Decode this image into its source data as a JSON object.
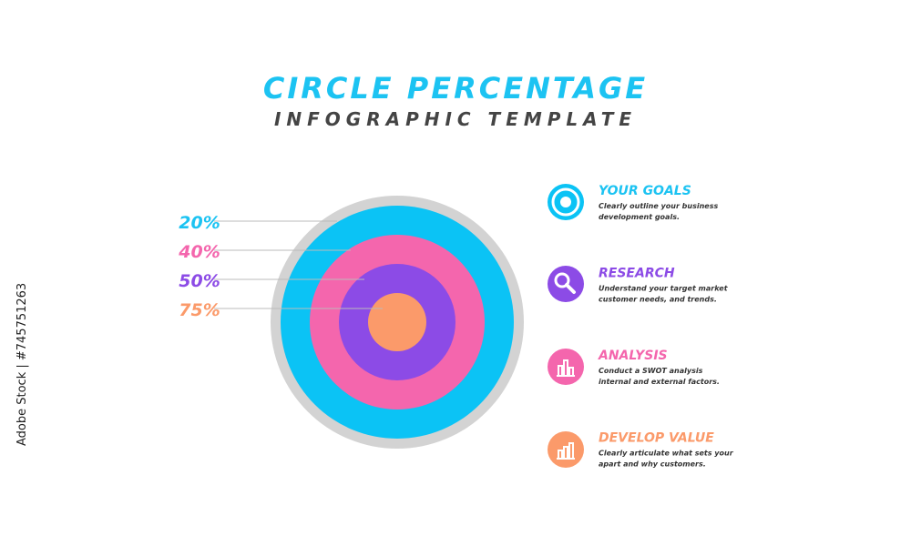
{
  "header": {
    "title": "CIRCLE PERCENTAGE",
    "subtitle": "INFOGRAPHIC TEMPLATE"
  },
  "percentages": [
    "20%",
    "40%",
    "50%",
    "75%"
  ],
  "items": [
    {
      "title": "YOUR GOALS",
      "lines": [
        "Clearly outline your business",
        "development goals."
      ]
    },
    {
      "title": "RESEARCH",
      "lines": [
        "Understand your target market",
        "customer needs, and trends."
      ]
    },
    {
      "title": "ANALYSIS",
      "lines": [
        "Conduct a SWOT analysis",
        "internal and external factors."
      ]
    },
    {
      "title": "DEVELOP VALUE",
      "lines": [
        "Clearly articulate what sets your",
        "apart  and why customers."
      ]
    }
  ],
  "watermark": "Adobe Stock | #745751263"
}
